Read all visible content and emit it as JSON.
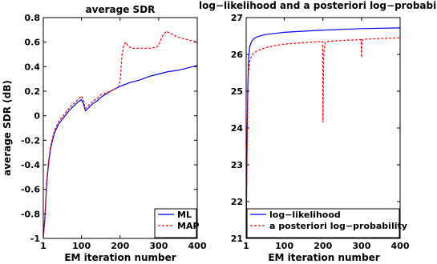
{
  "chart_data": [
    {
      "type": "line",
      "title": "average SDR",
      "xlabel": "EM iteration number",
      "ylabel": "average SDR (dB)",
      "xlim": [
        1,
        400
      ],
      "ylim": [
        -1,
        0.8
      ],
      "xticks": [
        1,
        100,
        200,
        300,
        400
      ],
      "yticks": [
        -1,
        -0.8,
        -0.6,
        -0.4,
        -0.2,
        0,
        0.2,
        0.4,
        0.6,
        0.8
      ],
      "grid": false,
      "legend_position": "bottom-right",
      "series": [
        {
          "name": "ML",
          "color": "#0000ff",
          "style": "solid",
          "points": [
            [
              1,
              -0.99
            ],
            [
              5,
              -0.85
            ],
            [
              10,
              -0.55
            ],
            [
              15,
              -0.38
            ],
            [
              20,
              -0.27
            ],
            [
              25,
              -0.2
            ],
            [
              30,
              -0.14
            ],
            [
              40,
              -0.07
            ],
            [
              50,
              -0.03
            ],
            [
              60,
              0.01
            ],
            [
              70,
              0.05
            ],
            [
              80,
              0.08
            ],
            [
              90,
              0.11
            ],
            [
              100,
              0.13
            ],
            [
              105,
              0.1
            ],
            [
              110,
              0.04
            ],
            [
              120,
              0.07
            ],
            [
              130,
              0.1
            ],
            [
              140,
              0.12
            ],
            [
              150,
              0.15
            ],
            [
              175,
              0.2
            ],
            [
              200,
              0.24
            ],
            [
              225,
              0.27
            ],
            [
              250,
              0.29
            ],
            [
              275,
              0.32
            ],
            [
              300,
              0.34
            ],
            [
              325,
              0.36
            ],
            [
              350,
              0.37
            ],
            [
              375,
              0.39
            ],
            [
              400,
              0.41
            ]
          ]
        },
        {
          "name": "MAP",
          "color": "#ff0000",
          "style": "dashed",
          "points": [
            [
              1,
              -0.99
            ],
            [
              5,
              -0.83
            ],
            [
              10,
              -0.52
            ],
            [
              15,
              -0.36
            ],
            [
              20,
              -0.25
            ],
            [
              25,
              -0.18
            ],
            [
              30,
              -0.12
            ],
            [
              40,
              -0.05
            ],
            [
              50,
              -0.01
            ],
            [
              60,
              0.03
            ],
            [
              70,
              0.07
            ],
            [
              80,
              0.1
            ],
            [
              90,
              0.13
            ],
            [
              100,
              0.16
            ],
            [
              105,
              0.12
            ],
            [
              110,
              0.06
            ],
            [
              120,
              0.09
            ],
            [
              130,
              0.12
            ],
            [
              140,
              0.14
            ],
            [
              150,
              0.17
            ],
            [
              175,
              0.2
            ],
            [
              195,
              0.23
            ],
            [
              200,
              0.28
            ],
            [
              205,
              0.5
            ],
            [
              210,
              0.58
            ],
            [
              215,
              0.6
            ],
            [
              220,
              0.57
            ],
            [
              230,
              0.55
            ],
            [
              250,
              0.55
            ],
            [
              280,
              0.55
            ],
            [
              295,
              0.56
            ],
            [
              300,
              0.58
            ],
            [
              310,
              0.65
            ],
            [
              320,
              0.69
            ],
            [
              330,
              0.67
            ],
            [
              350,
              0.64
            ],
            [
              375,
              0.62
            ],
            [
              400,
              0.6
            ]
          ]
        }
      ]
    },
    {
      "type": "line",
      "title": "log−likelihood and a posteriori log−probability",
      "xlabel": "EM iteration number",
      "ylabel": "",
      "xlim": [
        1,
        400
      ],
      "ylim": [
        21,
        27
      ],
      "xticks": [
        1,
        100,
        200,
        300,
        400
      ],
      "yticks": [
        21,
        22,
        23,
        24,
        25,
        26,
        27
      ],
      "grid": false,
      "legend_position": "bottom-right",
      "series": [
        {
          "name": "log−likelihood",
          "color": "#0000ff",
          "style": "solid",
          "points": [
            [
              1,
              21.0
            ],
            [
              3,
              23.5
            ],
            [
              5,
              25.0
            ],
            [
              7,
              25.8
            ],
            [
              10,
              26.2
            ],
            [
              15,
              26.35
            ],
            [
              20,
              26.42
            ],
            [
              30,
              26.48
            ],
            [
              50,
              26.54
            ],
            [
              75,
              26.57
            ],
            [
              100,
              26.6
            ],
            [
              150,
              26.63
            ],
            [
              200,
              26.66
            ],
            [
              250,
              26.68
            ],
            [
              300,
              26.7
            ],
            [
              350,
              26.71
            ],
            [
              400,
              26.72
            ]
          ]
        },
        {
          "name": "a posteriori log−probability",
          "color": "#ff0000",
          "style": "dashed",
          "points": [
            [
              1,
              21.0
            ],
            [
              3,
              23.0
            ],
            [
              5,
              24.7
            ],
            [
              7,
              25.5
            ],
            [
              10,
              25.8
            ],
            [
              15,
              25.95
            ],
            [
              20,
              26.03
            ],
            [
              30,
              26.1
            ],
            [
              50,
              26.18
            ],
            [
              75,
              26.24
            ],
            [
              100,
              26.28
            ],
            [
              150,
              26.32
            ],
            [
              195,
              26.35
            ],
            [
              199,
              26.35
            ],
            [
              200,
              24.15
            ],
            [
              202,
              26.0
            ],
            [
              205,
              26.3
            ],
            [
              210,
              26.35
            ],
            [
              250,
              26.38
            ],
            [
              295,
              26.4
            ],
            [
              299,
              26.4
            ],
            [
              300,
              25.92
            ],
            [
              301,
              26.38
            ],
            [
              305,
              26.41
            ],
            [
              350,
              26.43
            ],
            [
              400,
              26.45
            ]
          ]
        }
      ]
    }
  ]
}
